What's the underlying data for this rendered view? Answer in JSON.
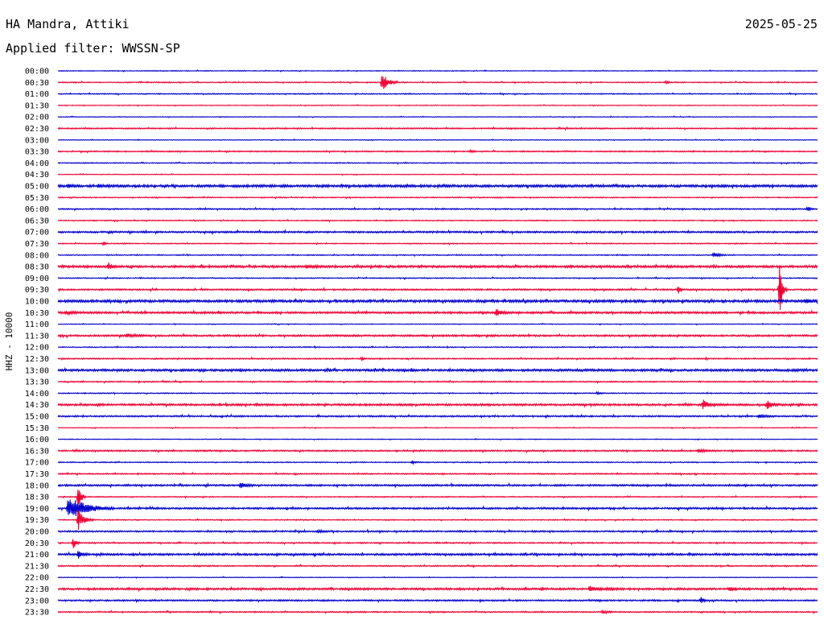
{
  "header": {
    "station": "HA Mandra, Attiki",
    "date": "2025-05-25",
    "filter": "Applied filter: WWSSN-SP"
  },
  "chart_data": {
    "type": "line",
    "ylabel": "HHZ - 10000",
    "colors": [
      "#0000cc",
      "#ee0033"
    ],
    "times": [
      "00:00",
      "00:30",
      "01:00",
      "01:30",
      "02:00",
      "02:30",
      "03:00",
      "03:30",
      "04:00",
      "04:30",
      "05:00",
      "05:30",
      "06:00",
      "06:30",
      "07:00",
      "07:30",
      "08:00",
      "08:30",
      "09:00",
      "09:30",
      "10:00",
      "10:30",
      "11:00",
      "11:30",
      "12:00",
      "12:30",
      "13:00",
      "13:30",
      "14:00",
      "14:30",
      "15:00",
      "15:30",
      "16:00",
      "16:30",
      "17:00",
      "17:30",
      "18:00",
      "18:30",
      "19:00",
      "19:30",
      "20:00",
      "20:30",
      "21:00",
      "21:30",
      "22:00",
      "22:30",
      "23:00",
      "23:30"
    ],
    "noise": [
      0.3,
      0.4,
      0.4,
      0.3,
      0.3,
      0.5,
      0.3,
      0.5,
      0.4,
      0.3,
      1.0,
      0.4,
      0.5,
      0.4,
      0.7,
      0.4,
      0.4,
      0.9,
      0.4,
      0.6,
      1.0,
      0.8,
      0.3,
      0.7,
      0.4,
      0.5,
      0.9,
      0.5,
      0.4,
      0.8,
      0.6,
      0.3,
      0.3,
      0.6,
      0.4,
      0.5,
      0.7,
      0.4,
      0.7,
      0.4,
      0.6,
      0.5,
      0.8,
      0.5,
      0.3,
      0.8,
      0.6,
      0.5
    ],
    "events": [
      {
        "row": 1,
        "minute": 12.8,
        "amp": 14,
        "dur": 0.6
      },
      {
        "row": 1,
        "minute": 24.0,
        "amp": 1.5,
        "dur": 0.3
      },
      {
        "row": 7,
        "minute": 16.3,
        "amp": 1.5,
        "dur": 0.3
      },
      {
        "row": 10,
        "minute": 0.4,
        "amp": 2,
        "dur": 0.5
      },
      {
        "row": 10,
        "minute": 1.6,
        "amp": 2,
        "dur": 0.3
      },
      {
        "row": 12,
        "minute": 29.6,
        "amp": 3,
        "dur": 0.3
      },
      {
        "row": 15,
        "minute": 1.8,
        "amp": 3,
        "dur": 0.2
      },
      {
        "row": 16,
        "minute": 25.9,
        "amp": 4,
        "dur": 0.5
      },
      {
        "row": 17,
        "minute": 2.0,
        "amp": 5,
        "dur": 0.4
      },
      {
        "row": 17,
        "minute": 9.8,
        "amp": 2,
        "dur": 1.0
      },
      {
        "row": 19,
        "minute": 24.5,
        "amp": 6,
        "dur": 0.2
      },
      {
        "row": 19,
        "minute": 28.5,
        "amp": 38,
        "dur": 0.3
      },
      {
        "row": 20,
        "minute": 29.5,
        "amp": 2,
        "dur": 1.0
      },
      {
        "row": 21,
        "minute": 0.3,
        "amp": 2,
        "dur": 1.0
      },
      {
        "row": 21,
        "minute": 17.3,
        "amp": 6,
        "dur": 0.5
      },
      {
        "row": 23,
        "minute": 2.7,
        "amp": 2,
        "dur": 1.0
      },
      {
        "row": 25,
        "minute": 12.0,
        "amp": 2,
        "dur": 0.2
      },
      {
        "row": 28,
        "minute": 21.3,
        "amp": 2,
        "dur": 0.3
      },
      {
        "row": 29,
        "minute": 25.5,
        "amp": 6,
        "dur": 0.5
      },
      {
        "row": 29,
        "minute": 28.0,
        "amp": 6,
        "dur": 0.5
      },
      {
        "row": 30,
        "minute": 27.7,
        "amp": 2,
        "dur": 0.7
      },
      {
        "row": 33,
        "minute": 25.3,
        "amp": 2,
        "dur": 0.8
      },
      {
        "row": 34,
        "minute": 14.0,
        "amp": 2,
        "dur": 0.3
      },
      {
        "row": 36,
        "minute": 7.2,
        "amp": 4,
        "dur": 0.6
      },
      {
        "row": 37,
        "minute": 0.8,
        "amp": 22,
        "dur": 0.3
      },
      {
        "row": 38,
        "minute": 0.4,
        "amp": 16,
        "dur": 1.8
      },
      {
        "row": 39,
        "minute": 0.8,
        "amp": 14,
        "dur": 0.6
      },
      {
        "row": 40,
        "minute": 10.3,
        "amp": 1.5,
        "dur": 0.6
      },
      {
        "row": 41,
        "minute": 0.6,
        "amp": 8,
        "dur": 0.3
      },
      {
        "row": 42,
        "minute": 0.8,
        "amp": 5,
        "dur": 0.4
      },
      {
        "row": 45,
        "minute": 21.0,
        "amp": 2,
        "dur": 1.5
      },
      {
        "row": 45,
        "minute": 26.5,
        "amp": 3,
        "dur": 0.5
      },
      {
        "row": 46,
        "minute": 25.4,
        "amp": 4,
        "dur": 0.3
      },
      {
        "row": 47,
        "minute": 21.5,
        "amp": 2,
        "dur": 0.6
      }
    ]
  }
}
